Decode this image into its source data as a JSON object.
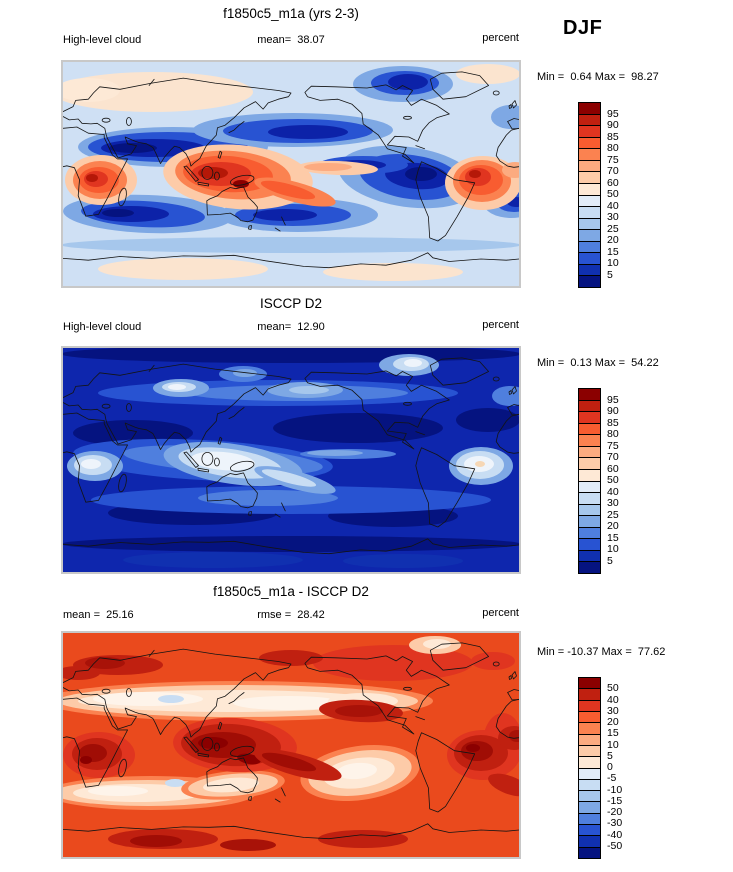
{
  "season": "DJF",
  "variable": "High-level cloud",
  "units": "percent",
  "panels": [
    {
      "title": "f1850c5_m1a (yrs 2-3)",
      "left_label": "High-level cloud",
      "center_label": "mean=  38.07",
      "right_label": "percent",
      "minmax": "Min =  0.64 Max =  98.27"
    },
    {
      "title": "ISCCP D2",
      "left_label": "High-level cloud",
      "center_label": "mean=  12.90",
      "right_label": "percent",
      "minmax": "Min =  0.13 Max =  54.22"
    },
    {
      "title": "f1850c5_m1a - ISCCP D2",
      "left_label": "mean =  25.16",
      "center_label": "rmse =  28.42",
      "right_label": "percent",
      "minmax": "Min = -10.37 Max =  77.62"
    }
  ],
  "colorbar_colors": [
    "#8b0000",
    "#c02010",
    "#e03520",
    "#f85c30",
    "#fb8250",
    "#fcab80",
    "#fdcba8",
    "#fee9d6",
    "#e2ecf8",
    "#c8ddf3",
    "#a6c7ec",
    "#7ea8e4",
    "#4f7fde",
    "#2853d2",
    "#1030b0",
    "#051380"
  ],
  "colorbars": [
    {
      "labels": [
        "95",
        "90",
        "85",
        "80",
        "75",
        "70",
        "60",
        "50",
        "40",
        "30",
        "25",
        "20",
        "15",
        "10",
        "5"
      ]
    },
    {
      "labels": [
        "95",
        "90",
        "85",
        "80",
        "75",
        "70",
        "60",
        "50",
        "40",
        "30",
        "25",
        "20",
        "15",
        "10",
        "5"
      ]
    },
    {
      "labels": [
        "50",
        "40",
        "30",
        "20",
        "15",
        "10",
        "5",
        "0",
        "-5",
        "-10",
        "-15",
        "-20",
        "-30",
        "-40",
        "-50"
      ]
    }
  ],
  "chart_data": [
    {
      "type": "heatmap",
      "title": "f1850c5_m1a (yrs 2-3)",
      "variable": "High-level cloud",
      "units": "percent",
      "season": "DJF",
      "projection": "global cylindrical lat-lon map, lon 0-360E, lat 90N-90S",
      "stats": {
        "mean": 38.07,
        "min": 0.64,
        "max": 98.27
      },
      "contour_levels": [
        5,
        10,
        15,
        20,
        25,
        30,
        40,
        50,
        60,
        70,
        75,
        80,
        85,
        90,
        95
      ],
      "palette": [
        "#8b0000",
        "#c02010",
        "#e03520",
        "#f85c30",
        "#fb8250",
        "#fcab80",
        "#fdcba8",
        "#fee9d6",
        "#e2ecf8",
        "#c8ddf3",
        "#a6c7ec",
        "#7ea8e4",
        "#4f7fde",
        "#2853d2",
        "#1030b0",
        "#051380"
      ],
      "legend_position": "right",
      "description": "High values (red, 70-95%) over central Africa, Maritime Continent/SPCZ and Amazon; low values (dark blue, 5-15%) over subtropical oceans and Canadian Arctic; pale cream patches over high northern latitudes and Antarctica."
    },
    {
      "type": "heatmap",
      "title": "ISCCP D2",
      "variable": "High-level cloud",
      "units": "percent",
      "season": "DJF",
      "projection": "global cylindrical lat-lon map, lon 0-360E, lat 90N-90S",
      "stats": {
        "mean": 12.9,
        "min": 0.13,
        "max": 54.22
      },
      "contour_levels": [
        5,
        10,
        15,
        20,
        25,
        30,
        40,
        50,
        60,
        70,
        75,
        80,
        85,
        90,
        95
      ],
      "palette": [
        "#8b0000",
        "#c02010",
        "#e03520",
        "#f85c30",
        "#fb8250",
        "#fcab80",
        "#fdcba8",
        "#fee9d6",
        "#e2ecf8",
        "#c8ddf3",
        "#a6c7ec",
        "#7ea8e4",
        "#4f7fde",
        "#2853d2",
        "#1030b0",
        "#051380"
      ],
      "legend_position": "right",
      "description": "Mostly dark blue (5-15%) with lighter patches (30-50%) over Tibet, equatorial Africa, the Maritime Continent/SPCZ band, the Amazon and northeast Canada."
    },
    {
      "type": "heatmap",
      "title": "f1850c5_m1a - ISCCP D2",
      "variable": "High-level cloud difference",
      "units": "percent",
      "season": "DJF",
      "projection": "global cylindrical lat-lon map, lon 0-360E, lat 90N-90S",
      "stats": {
        "mean": 25.16,
        "rmse": 28.42,
        "min": -10.37,
        "max": 77.62
      },
      "contour_levels": [
        -50,
        -40,
        -30,
        -20,
        -15,
        -10,
        -5,
        0,
        5,
        10,
        15,
        20,
        30,
        40,
        50
      ],
      "palette": [
        "#8b0000",
        "#c02010",
        "#e03520",
        "#f85c30",
        "#fb8250",
        "#fcab80",
        "#fdcba8",
        "#fee9d6",
        "#e2ecf8",
        "#c8ddf3",
        "#a6c7ec",
        "#7ea8e4",
        "#4f7fde",
        "#2853d2",
        "#1030b0",
        "#051380"
      ],
      "legend_position": "right",
      "description": "Positive bias (orange/red) nearly everywhere, strongest (40-50%) over central Africa, Maritime Continent and Amazon; near-zero cream bands along 30N and 30S with small negative (pale blue) spots near Tibet and south of Australia."
    }
  ]
}
